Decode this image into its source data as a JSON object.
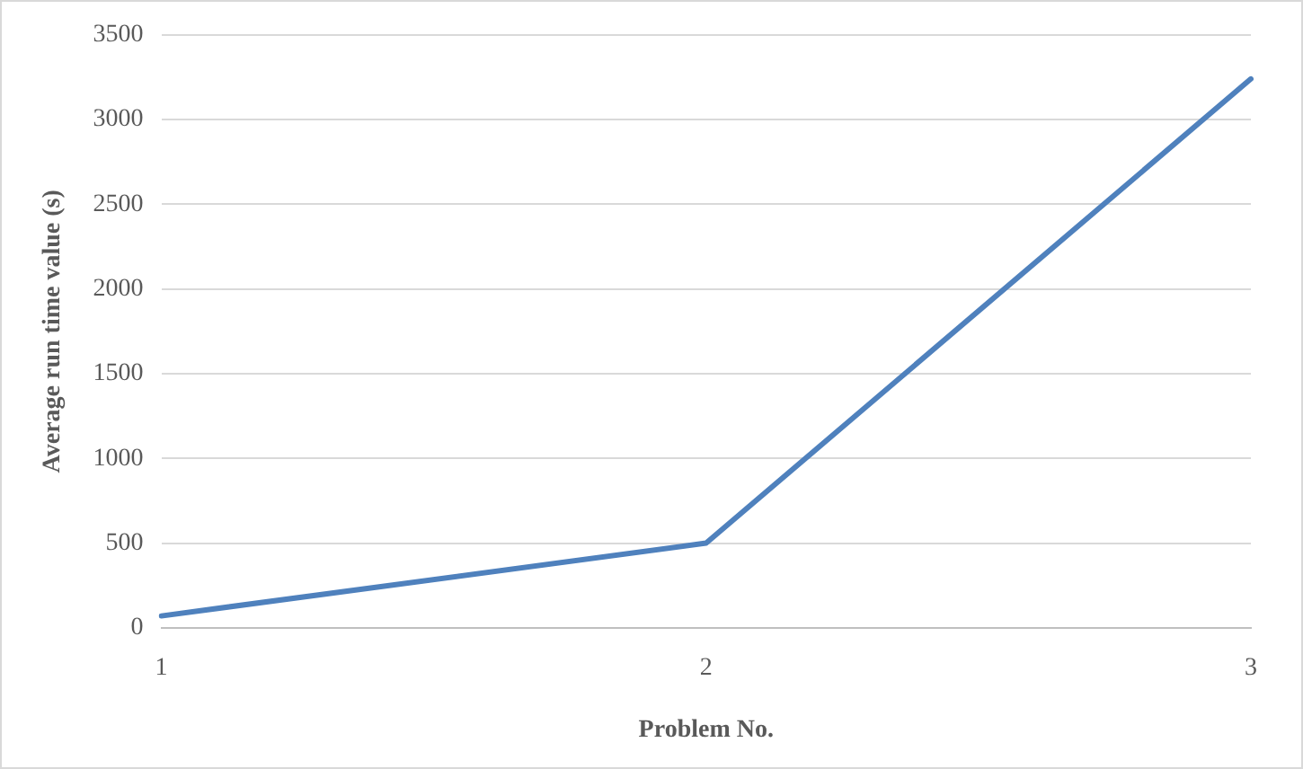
{
  "chart_data": {
    "type": "line",
    "xlabel": "Problem No.",
    "ylabel": "Average run time value (s)",
    "categories": [
      "1",
      "2",
      "3"
    ],
    "series": [
      {
        "color": "#4f81bd",
        "values": [
          70,
          500,
          3240
        ]
      }
    ],
    "ylim": [
      0,
      3500
    ],
    "yticks": [
      0,
      500,
      1000,
      1500,
      2000,
      2500,
      3000,
      3500
    ],
    "grid": "y",
    "legend": false,
    "marker": "none",
    "line_style": "solid"
  }
}
